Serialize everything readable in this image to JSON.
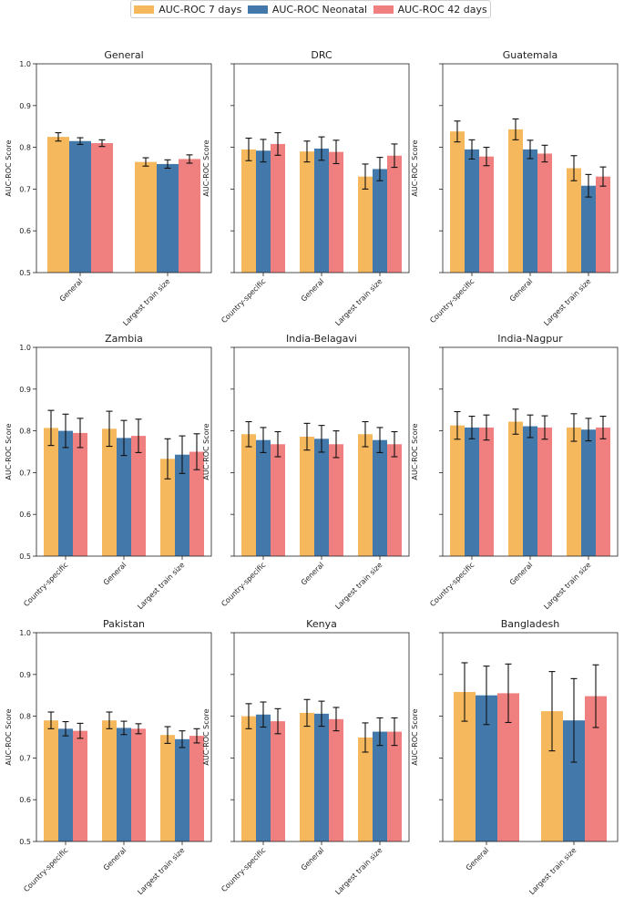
{
  "legend": [
    {
      "label": "AUC-ROC 7 days",
      "color": "#f5b85c"
    },
    {
      "label": "AUC-ROC Neonatal",
      "color": "#4378aa"
    },
    {
      "label": "AUC-ROC 42 days",
      "color": "#f08080"
    }
  ],
  "chart_data": [
    {
      "type": "bar",
      "title": "General",
      "ylabel": "AUC-ROC Score",
      "ylim": [
        0.5,
        1.0
      ],
      "y_ticks": [
        "0.5",
        "0.6",
        "0.7",
        "0.8",
        "0.9",
        "1.0"
      ],
      "categories": [
        "General",
        "Largest train size"
      ],
      "series": [
        {
          "name": "AUC-ROC 7 days",
          "values": [
            0.825,
            0.765
          ],
          "errors": [
            0.01,
            0.01
          ]
        },
        {
          "name": "AUC-ROC Neonatal",
          "values": [
            0.815,
            0.76
          ],
          "errors": [
            0.008,
            0.01
          ]
        },
        {
          "name": "AUC-ROC 42 days",
          "values": [
            0.81,
            0.772
          ],
          "errors": [
            0.008,
            0.01
          ]
        }
      ]
    },
    {
      "type": "bar",
      "title": "DRC",
      "ylabel": "AUC-ROC Score",
      "ylim": [
        0.5,
        1.0
      ],
      "y_ticks": [],
      "categories": [
        "Country-specific",
        "General",
        "Largest train size"
      ],
      "series": [
        {
          "name": "AUC-ROC 7 days",
          "values": [
            0.795,
            0.79,
            0.73
          ],
          "errors": [
            0.027,
            0.025,
            0.03
          ]
        },
        {
          "name": "AUC-ROC Neonatal",
          "values": [
            0.792,
            0.797,
            0.748
          ],
          "errors": [
            0.027,
            0.028,
            0.028
          ]
        },
        {
          "name": "AUC-ROC 42 days",
          "values": [
            0.808,
            0.789,
            0.78
          ],
          "errors": [
            0.027,
            0.028,
            0.028
          ]
        }
      ]
    },
    {
      "type": "bar",
      "title": "Guatemala",
      "ylabel": "AUC-ROC Score",
      "ylim": [
        0.5,
        1.0
      ],
      "y_ticks": [],
      "categories": [
        "Country-specific",
        "General",
        "Largest train size"
      ],
      "series": [
        {
          "name": "AUC-ROC 7 days",
          "values": [
            0.838,
            0.843,
            0.75
          ],
          "errors": [
            0.025,
            0.025,
            0.03
          ]
        },
        {
          "name": "AUC-ROC Neonatal",
          "values": [
            0.795,
            0.795,
            0.708
          ],
          "errors": [
            0.023,
            0.022,
            0.027
          ]
        },
        {
          "name": "AUC-ROC 42 days",
          "values": [
            0.778,
            0.785,
            0.73
          ],
          "errors": [
            0.022,
            0.02,
            0.023
          ]
        }
      ]
    },
    {
      "type": "bar",
      "title": "Zambia",
      "ylabel": "AUC-ROC Score",
      "ylim": [
        0.5,
        1.0
      ],
      "y_ticks": [
        "0.5",
        "0.6",
        "0.7",
        "0.8",
        "0.9",
        "1.0"
      ],
      "categories": [
        "Country-specific",
        "General",
        "Largest train size"
      ],
      "series": [
        {
          "name": "AUC-ROC 7 days",
          "values": [
            0.807,
            0.805,
            0.733
          ],
          "errors": [
            0.042,
            0.042,
            0.048
          ]
        },
        {
          "name": "AUC-ROC Neonatal",
          "values": [
            0.8,
            0.783,
            0.743
          ],
          "errors": [
            0.04,
            0.042,
            0.045
          ]
        },
        {
          "name": "AUC-ROC 42 days",
          "values": [
            0.795,
            0.788,
            0.75
          ],
          "errors": [
            0.035,
            0.04,
            0.043
          ]
        }
      ]
    },
    {
      "type": "bar",
      "title": "India-Belagavi",
      "ylabel": "AUC-ROC Score",
      "ylim": [
        0.5,
        1.0
      ],
      "y_ticks": [],
      "categories": [
        "Country-specific",
        "General",
        "Largest train size"
      ],
      "series": [
        {
          "name": "AUC-ROC 7 days",
          "values": [
            0.792,
            0.786,
            0.792
          ],
          "errors": [
            0.03,
            0.032,
            0.03
          ]
        },
        {
          "name": "AUC-ROC Neonatal",
          "values": [
            0.778,
            0.781,
            0.778
          ],
          "errors": [
            0.03,
            0.032,
            0.03
          ]
        },
        {
          "name": "AUC-ROC 42 days",
          "values": [
            0.768,
            0.768,
            0.768
          ],
          "errors": [
            0.03,
            0.032,
            0.03
          ]
        }
      ]
    },
    {
      "type": "bar",
      "title": "India-Nagpur",
      "ylabel": "AUC-ROC Score",
      "ylim": [
        0.5,
        1.0
      ],
      "y_ticks": [],
      "categories": [
        "Country-specific",
        "General",
        "Largest train size"
      ],
      "series": [
        {
          "name": "AUC-ROC 7 days",
          "values": [
            0.813,
            0.822,
            0.808
          ],
          "errors": [
            0.033,
            0.03,
            0.033
          ]
        },
        {
          "name": "AUC-ROC Neonatal",
          "values": [
            0.808,
            0.811,
            0.803
          ],
          "errors": [
            0.027,
            0.027,
            0.027
          ]
        },
        {
          "name": "AUC-ROC 42 days",
          "values": [
            0.808,
            0.808,
            0.808
          ],
          "errors": [
            0.03,
            0.028,
            0.027
          ]
        }
      ]
    },
    {
      "type": "bar",
      "title": "Pakistan",
      "ylabel": "AUC-ROC Score",
      "ylim": [
        0.5,
        1.0
      ],
      "y_ticks": [
        "0.5",
        "0.6",
        "0.7",
        "0.8",
        "0.9",
        "1.0"
      ],
      "categories": [
        "Country-specific",
        "General",
        "Largest train size"
      ],
      "series": [
        {
          "name": "AUC-ROC 7 days",
          "values": [
            0.79,
            0.79,
            0.755
          ],
          "errors": [
            0.02,
            0.02,
            0.02
          ]
        },
        {
          "name": "AUC-ROC Neonatal",
          "values": [
            0.77,
            0.772,
            0.745
          ],
          "errors": [
            0.017,
            0.016,
            0.02
          ]
        },
        {
          "name": "AUC-ROC 42 days",
          "values": [
            0.765,
            0.77,
            0.753
          ],
          "errors": [
            0.018,
            0.012,
            0.017
          ]
        }
      ]
    },
    {
      "type": "bar",
      "title": "Kenya",
      "ylabel": "AUC-ROC Score",
      "ylim": [
        0.5,
        1.0
      ],
      "y_ticks": [],
      "categories": [
        "Country-specific",
        "General",
        "Largest train size"
      ],
      "series": [
        {
          "name": "AUC-ROC 7 days",
          "values": [
            0.8,
            0.808,
            0.749
          ],
          "errors": [
            0.03,
            0.032,
            0.035
          ]
        },
        {
          "name": "AUC-ROC Neonatal",
          "values": [
            0.804,
            0.806,
            0.763
          ],
          "errors": [
            0.03,
            0.03,
            0.033
          ]
        },
        {
          "name": "AUC-ROC 42 days",
          "values": [
            0.788,
            0.793,
            0.763
          ],
          "errors": [
            0.03,
            0.028,
            0.033
          ]
        }
      ]
    },
    {
      "type": "bar",
      "title": "Bangladesh",
      "ylabel": "AUC-ROC Score",
      "ylim": [
        0.5,
        1.0
      ],
      "y_ticks": [],
      "categories": [
        "General",
        "Largest train size"
      ],
      "series": [
        {
          "name": "AUC-ROC 7 days",
          "values": [
            0.858,
            0.812
          ],
          "errors": [
            0.07,
            0.095
          ]
        },
        {
          "name": "AUC-ROC Neonatal",
          "values": [
            0.85,
            0.79
          ],
          "errors": [
            0.07,
            0.1
          ]
        },
        {
          "name": "AUC-ROC 42 days",
          "values": [
            0.855,
            0.848
          ],
          "errors": [
            0.07,
            0.075
          ]
        }
      ]
    }
  ]
}
